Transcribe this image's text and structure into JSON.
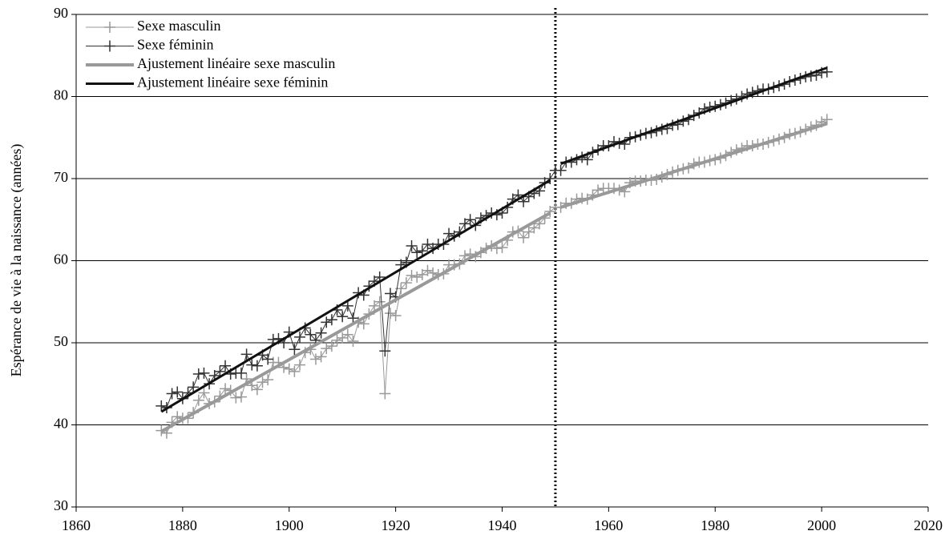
{
  "chart_data": {
    "type": "line",
    "y_label": "Espérance de vie à la naissance (années)",
    "xlim": [
      1860,
      2020
    ],
    "xticks": [
      1860,
      1880,
      1900,
      1920,
      1940,
      1960,
      1980,
      2000,
      2020
    ],
    "ylim": [
      30,
      90
    ],
    "yticks": [
      30,
      40,
      50,
      60,
      70,
      80,
      90
    ],
    "grid": true,
    "legend": "upper-left",
    "vline_x": 1950,
    "x": [
      1876,
      1877,
      1878,
      1879,
      1880,
      1881,
      1882,
      1883,
      1884,
      1885,
      1886,
      1887,
      1888,
      1889,
      1890,
      1891,
      1892,
      1893,
      1894,
      1895,
      1896,
      1897,
      1898,
      1899,
      1900,
      1901,
      1902,
      1903,
      1904,
      1905,
      1906,
      1907,
      1908,
      1909,
      1910,
      1911,
      1912,
      1913,
      1914,
      1915,
      1916,
      1917,
      1918,
      1919,
      1920,
      1921,
      1922,
      1923,
      1924,
      1925,
      1926,
      1927,
      1928,
      1929,
      1930,
      1931,
      1932,
      1933,
      1934,
      1935,
      1936,
      1937,
      1938,
      1939,
      1940,
      1941,
      1942,
      1943,
      1944,
      1945,
      1946,
      1947,
      1948,
      1949,
      1950,
      1951,
      1952,
      1953,
      1954,
      1955,
      1956,
      1957,
      1958,
      1959,
      1960,
      1961,
      1962,
      1963,
      1964,
      1965,
      1966,
      1967,
      1968,
      1969,
      1970,
      1971,
      1972,
      1973,
      1974,
      1975,
      1976,
      1977,
      1978,
      1979,
      1980,
      1981,
      1982,
      1983,
      1984,
      1985,
      1986,
      1987,
      1988,
      1989,
      1990,
      1991,
      1992,
      1993,
      1994,
      1995,
      1996,
      1997,
      1998,
      1999,
      2000,
      2001
    ],
    "series": [
      {
        "name": "Sexe masculin",
        "color": "#999999",
        "markers": true,
        "line_width": 1,
        "values": [
          39.3,
          39.0,
          40.3,
          41.0,
          40.8,
          40.8,
          41.5,
          43.0,
          43.9,
          42.6,
          42.8,
          43.5,
          44.4,
          44.2,
          43.3,
          43.4,
          45.6,
          44.8,
          44.3,
          45.2,
          45.5,
          47.6,
          47.6,
          47.0,
          46.8,
          46.5,
          47.3,
          48.8,
          49.2,
          48.0,
          48.3,
          49.3,
          49.6,
          50.3,
          50.6,
          51.0,
          50.2,
          52.5,
          52.3,
          53.5,
          54.5,
          55.0,
          43.8,
          53.6,
          53.3,
          56.6,
          57.3,
          58.2,
          58.0,
          58.3,
          58.8,
          58.5,
          58.3,
          58.4,
          59.5,
          59.5,
          59.6,
          60.6,
          60.8,
          60.5,
          61.0,
          61.5,
          61.8,
          61.5,
          61.6,
          62.5,
          63.5,
          63.6,
          62.8,
          63.5,
          64.0,
          64.5,
          65.2,
          66.0,
          66.5,
          66.5,
          67.0,
          67.0,
          67.5,
          67.6,
          67.5,
          68.0,
          68.6,
          68.8,
          68.8,
          68.8,
          68.6,
          68.4,
          69.5,
          69.7,
          69.7,
          69.8,
          69.8,
          69.9,
          70.2,
          70.5,
          70.8,
          71.0,
          71.2,
          71.3,
          71.8,
          72.0,
          72.0,
          72.2,
          72.3,
          72.5,
          72.8,
          73.2,
          73.5,
          73.7,
          74.0,
          74.0,
          74.2,
          74.2,
          74.4,
          74.6,
          74.8,
          75.0,
          75.4,
          75.5,
          75.7,
          76.0,
          76.3,
          76.5,
          76.9,
          77.2
        ]
      },
      {
        "name": "Sexe féminin",
        "color": "#333333",
        "markers": true,
        "line_width": 1,
        "values": [
          42.3,
          42.1,
          43.8,
          44.0,
          43.2,
          43.9,
          44.6,
          46.2,
          46.3,
          45.0,
          46.0,
          46.5,
          47.2,
          46.2,
          46.3,
          46.3,
          48.6,
          47.3,
          47.2,
          48.5,
          48.0,
          50.4,
          50.5,
          50.0,
          51.3,
          49.2,
          50.7,
          51.8,
          51.0,
          50.3,
          51.2,
          52.5,
          52.8,
          54.0,
          53.2,
          54.5,
          53.0,
          56.1,
          55.8,
          56.9,
          57.5,
          58.0,
          49.0,
          56.0,
          55.6,
          59.5,
          59.8,
          61.8,
          61.0,
          61.2,
          62.0,
          61.5,
          62.0,
          62.0,
          63.3,
          63.0,
          63.5,
          64.5,
          65.0,
          64.3,
          65.2,
          65.5,
          65.8,
          65.6,
          65.8,
          66.5,
          67.5,
          68.0,
          67.2,
          67.8,
          68.2,
          68.5,
          69.5,
          70.0,
          71.0,
          71.0,
          72.0,
          72.0,
          72.3,
          72.6,
          72.3,
          73.2,
          73.5,
          74.0,
          74.0,
          74.5,
          74.3,
          74.2,
          75.0,
          75.1,
          75.3,
          75.5,
          75.6,
          75.8,
          76.0,
          76.1,
          76.5,
          76.6,
          77.0,
          77.2,
          77.7,
          78.0,
          78.5,
          78.7,
          78.8,
          79.0,
          79.2,
          79.5,
          79.7,
          80.0,
          80.3,
          80.5,
          80.7,
          80.9,
          80.9,
          81.1,
          81.3,
          81.5,
          81.8,
          82.0,
          82.2,
          82.4,
          82.5,
          82.6,
          82.9,
          83.0
        ]
      },
      {
        "name": "Ajustement linéaire sexe masculin",
        "color": "#999999",
        "markers": false,
        "line_width": 4,
        "x": [
          1876,
          1949,
          1950,
          1951,
          2001
        ],
        "values": [
          39.2,
          65.8,
          null,
          66.5,
          76.7
        ]
      },
      {
        "name": "Ajustement linéaire sexe féminin",
        "color": "#111111",
        "markers": false,
        "line_width": 3,
        "x": [
          1876,
          1949,
          1950,
          1951,
          2001
        ],
        "values": [
          41.6,
          69.8,
          null,
          71.8,
          83.5
        ]
      }
    ]
  }
}
